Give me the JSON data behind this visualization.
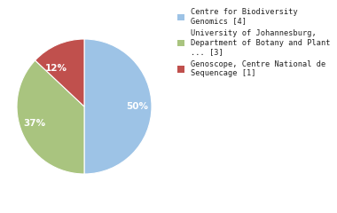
{
  "slices": [
    50,
    37,
    13
  ],
  "colors": [
    "#9dc3e6",
    "#a9c47f",
    "#c0504d"
  ],
  "pct_labels": [
    "50%",
    "37%",
    "12%"
  ],
  "legend_labels": [
    "Centre for Biodiversity\nGenomics [4]",
    "University of Johannesburg,\nDepartment of Botany and Plant\n... [3]",
    "Genoscope, Centre National de\nSequencage [1]"
  ],
  "startangle": 90,
  "text_color": "white",
  "label_fontsize": 7.5,
  "legend_fontsize": 6.2,
  "bg_color": "#ffffff"
}
